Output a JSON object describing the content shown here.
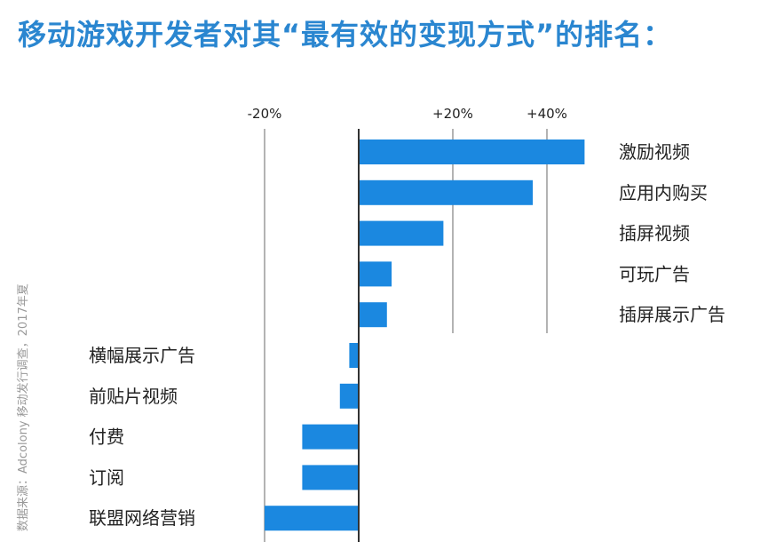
{
  "title": "移动游戏开发者对其“最有效的变现方式”的排名：",
  "source": "数据来源：Adcolony 移动发行调查，2017年夏",
  "colors": {
    "bar": "#1b88e0",
    "grid": "#888888",
    "title": "#2a86d0",
    "text": "#222222"
  },
  "chart_data": {
    "type": "bar",
    "orientation": "horizontal",
    "xlim": [
      -20,
      48
    ],
    "ticks": [
      -20,
      20,
      40
    ],
    "tick_labels": [
      "-20%",
      "+20%",
      "+40%"
    ],
    "categories": [
      "激励视频",
      "应用内购买",
      "插屏视频",
      "可玩广告",
      "插屏展示广告",
      "横幅展示广告",
      "前贴片视频",
      "付费",
      "订阅",
      "联盟网络营销"
    ],
    "values": [
      48,
      37,
      18,
      7,
      6,
      -2,
      -4,
      -12,
      -12,
      -20
    ],
    "grid": true,
    "unit": "%"
  }
}
